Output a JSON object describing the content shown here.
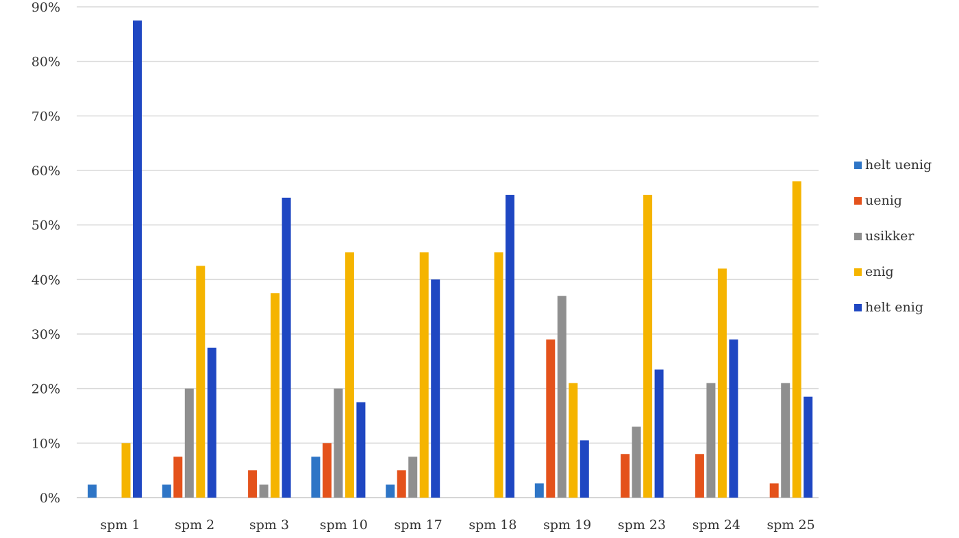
{
  "chart_data": {
    "type": "bar",
    "title": "",
    "xlabel": "",
    "ylabel": "",
    "ylim": [
      0,
      90
    ],
    "y_ticks": [
      0,
      10,
      20,
      30,
      40,
      50,
      60,
      70,
      80,
      90
    ],
    "y_tick_suffix": "%",
    "grid": true,
    "legend_position": "right",
    "categories": [
      "spm 1",
      "spm 2",
      "spm 3",
      "spm 10",
      "spm 17",
      "spm 18",
      "spm 19",
      "spm 23",
      "spm 24",
      "spm 25"
    ],
    "series": [
      {
        "name": "helt uenig",
        "color": "#2e75c6",
        "values": [
          2.4,
          2.4,
          0,
          7.5,
          2.4,
          0,
          2.6,
          0,
          0,
          0
        ]
      },
      {
        "name": "uenig",
        "color": "#e4521b",
        "values": [
          0,
          7.5,
          5,
          10,
          5,
          0,
          29,
          8,
          8,
          2.6
        ]
      },
      {
        "name": "usikker",
        "color": "#8f8f8f",
        "values": [
          0,
          20,
          2.4,
          20,
          7.5,
          0,
          37,
          13,
          21,
          21
        ]
      },
      {
        "name": "enig",
        "color": "#f5b400",
        "values": [
          10,
          42.5,
          37.5,
          45,
          45,
          45,
          21,
          55.5,
          42,
          58
        ]
      },
      {
        "name": "helt enig",
        "color": "#1f47c2",
        "values": [
          87.5,
          27.5,
          55,
          17.5,
          40,
          55.5,
          10.5,
          23.5,
          29,
          18.5
        ]
      }
    ]
  }
}
